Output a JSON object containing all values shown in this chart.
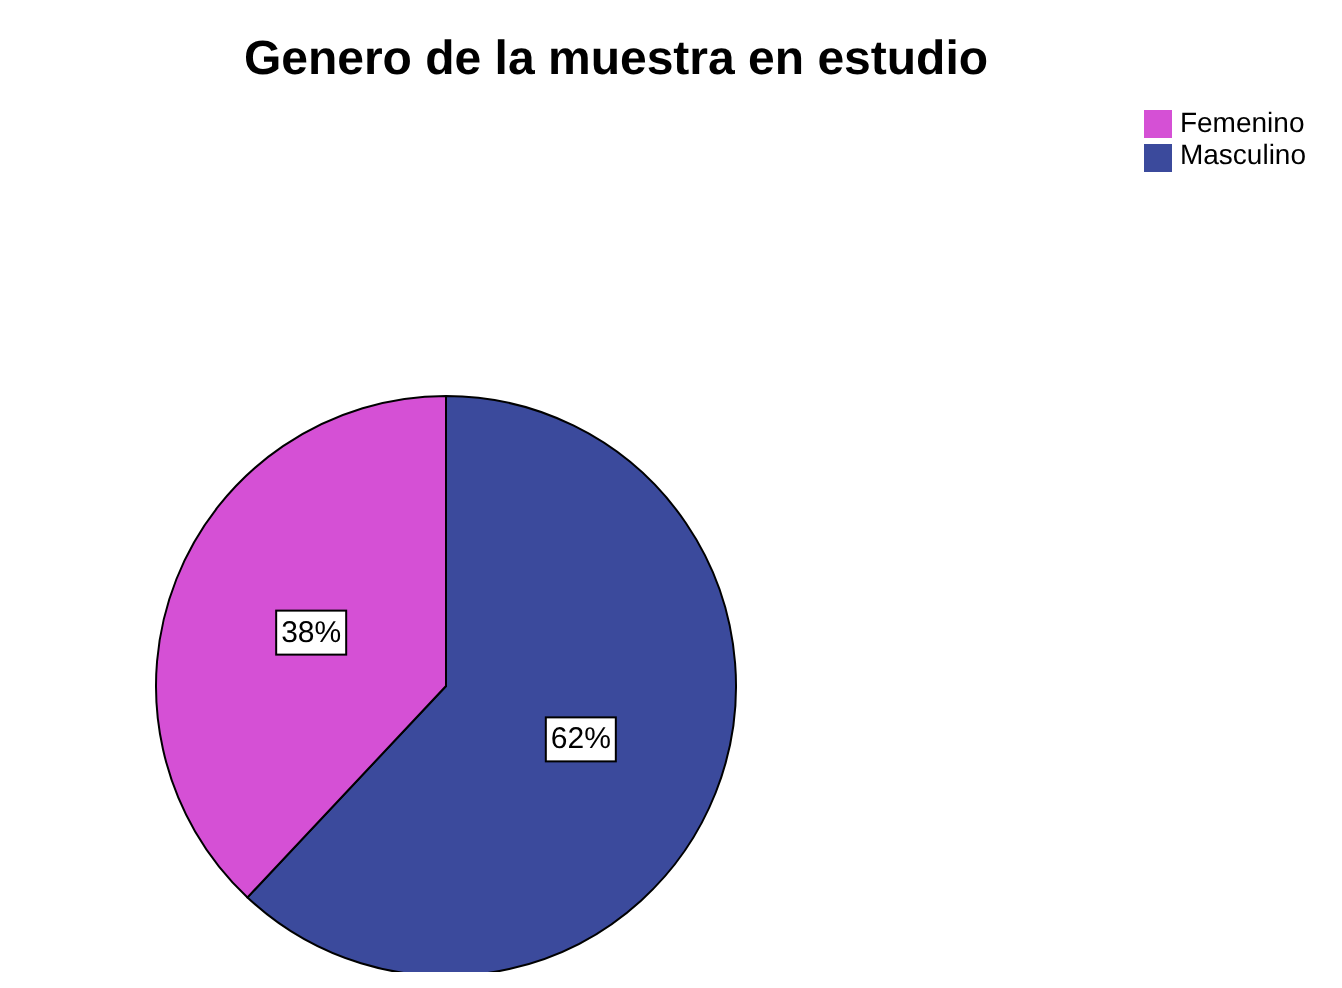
{
  "chart_data": {
    "type": "pie",
    "title": "Genero de la muestra en estudio",
    "categories": [
      "Masculino",
      "Femenino"
    ],
    "values": [
      62,
      38
    ],
    "colors": [
      "#3b4a9c",
      "#d550d5"
    ],
    "value_labels": [
      "62%",
      "38%"
    ],
    "legend": "top right"
  }
}
